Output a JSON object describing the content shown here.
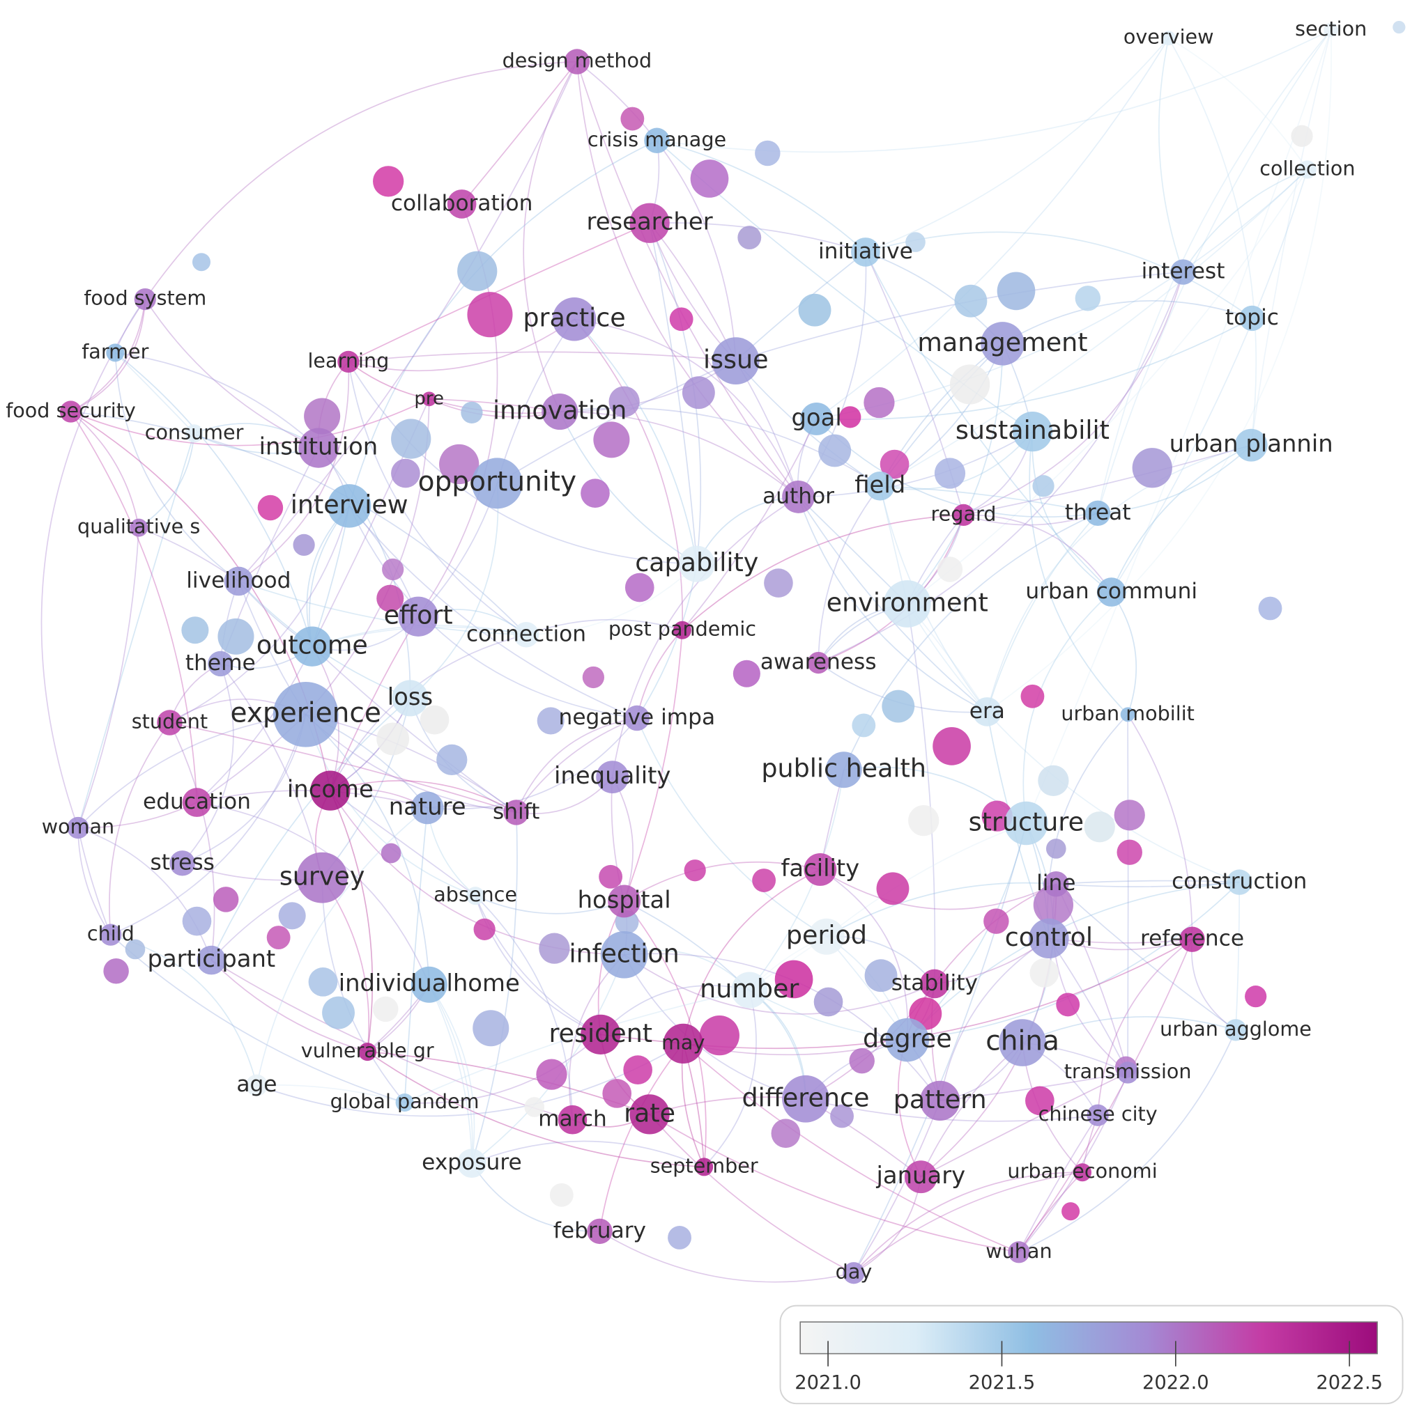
{
  "network": {
    "nodes": [
      {
        "label": "overview",
        "year": 2021.2
      },
      {
        "label": "section",
        "year": 2021.1
      },
      {
        "label": "design method",
        "year": 2022.1
      },
      {
        "label": "crisis manage",
        "year": 2021.6
      },
      {
        "label": "collaboration",
        "year": 2022.2
      },
      {
        "label": "researcher",
        "year": 2022.2
      },
      {
        "label": "initiative",
        "year": 2021.5
      },
      {
        "label": "collection",
        "year": 2021.2
      },
      {
        "label": "interest",
        "year": 2021.7
      },
      {
        "label": "topic",
        "year": 2021.5
      },
      {
        "label": "food system",
        "year": 2022.0
      },
      {
        "label": "farmer",
        "year": 2021.6
      },
      {
        "label": "practice",
        "year": 2021.9
      },
      {
        "label": "management",
        "year": 2021.8
      },
      {
        "label": "learning",
        "year": 2022.3
      },
      {
        "label": "issue",
        "year": 2021.8
      },
      {
        "label": "food security",
        "year": 2022.2
      },
      {
        "label": "pre",
        "year": 2022.3
      },
      {
        "label": "innovation",
        "year": 2022.0
      },
      {
        "label": "goal",
        "year": 2021.6
      },
      {
        "label": "sustainabilit",
        "year": 2021.5
      },
      {
        "label": "urban plannin",
        "year": 2021.5
      },
      {
        "label": "consumer",
        "year": 2021.2
      },
      {
        "label": "institution",
        "year": 2022.0
      },
      {
        "label": "opportunity",
        "year": 2021.7
      },
      {
        "label": "field",
        "year": 2021.5
      },
      {
        "label": "author",
        "year": 2022.0
      },
      {
        "label": "interview",
        "year": 2021.6
      },
      {
        "label": "regard",
        "year": 2022.3
      },
      {
        "label": "threat",
        "year": 2021.6
      },
      {
        "label": "qualitative s",
        "year": 2022.0
      },
      {
        "label": "capability",
        "year": 2021.2
      },
      {
        "label": "livelihood",
        "year": 2021.8
      },
      {
        "label": "environment",
        "year": 2021.3
      },
      {
        "label": "urban communi",
        "year": 2021.6
      },
      {
        "label": "effort",
        "year": 2021.9
      },
      {
        "label": "connection",
        "year": 2021.2
      },
      {
        "label": "post pandemic",
        "year": 2022.4
      },
      {
        "label": "outcome",
        "year": 2021.6
      },
      {
        "label": "theme",
        "year": 2021.8
      },
      {
        "label": "awareness",
        "year": 2022.1
      },
      {
        "label": "loss",
        "year": 2021.3
      },
      {
        "label": "experience",
        "year": 2021.7
      },
      {
        "label": "student",
        "year": 2022.2
      },
      {
        "label": "negative impa",
        "year": 2021.9
      },
      {
        "label": "era",
        "year": 2021.3
      },
      {
        "label": "urban mobilit",
        "year": 2021.6
      },
      {
        "label": "inequality",
        "year": 2021.9
      },
      {
        "label": "public health",
        "year": 2021.7
      },
      {
        "label": "income",
        "year": 2022.5
      },
      {
        "label": "education",
        "year": 2022.2
      },
      {
        "label": "nature",
        "year": 2021.7
      },
      {
        "label": "shift",
        "year": 2022.1
      },
      {
        "label": "woman",
        "year": 2021.9
      },
      {
        "label": "structure",
        "year": 2021.4
      },
      {
        "label": "stress",
        "year": 2021.9
      },
      {
        "label": "survey",
        "year": 2022.0
      },
      {
        "label": "facility",
        "year": 2022.2
      },
      {
        "label": "absence",
        "year": 2021.2
      },
      {
        "label": "hospital",
        "year": 2022.1
      },
      {
        "label": "line",
        "year": 2022.0
      },
      {
        "label": "construction",
        "year": 2021.4
      },
      {
        "label": "child",
        "year": 2021.9
      },
      {
        "label": "period",
        "year": 2021.1
      },
      {
        "label": "control",
        "year": 2021.8
      },
      {
        "label": "reference",
        "year": 2022.3
      },
      {
        "label": "participant",
        "year": 2021.8
      },
      {
        "label": "infection",
        "year": 2021.7
      },
      {
        "label": "individualhome",
        "year": 2021.6
      },
      {
        "label": "number",
        "year": 2021.2
      },
      {
        "label": "stability",
        "year": 2022.3
      },
      {
        "label": "china",
        "year": 2021.8
      },
      {
        "label": "resident",
        "year": 2022.4
      },
      {
        "label": "may",
        "year": 2022.4
      },
      {
        "label": "degree",
        "year": 2021.7
      },
      {
        "label": "urban agglome",
        "year": 2021.4
      },
      {
        "label": "vulnerable gr",
        "year": 2022.4
      },
      {
        "label": "age",
        "year": 2021.1
      },
      {
        "label": "transmission",
        "year": 2021.9
      },
      {
        "label": "global pandem",
        "year": 2021.5
      },
      {
        "label": "difference",
        "year": 2021.9
      },
      {
        "label": "pattern",
        "year": 2022.0
      },
      {
        "label": "chinese city",
        "year": 2021.9
      },
      {
        "label": "march",
        "year": 2022.3
      },
      {
        "label": "rate",
        "year": 2022.4
      },
      {
        "label": "september",
        "year": 2022.4
      },
      {
        "label": "exposure",
        "year": 2021.2
      },
      {
        "label": "urban economi",
        "year": 2022.3
      },
      {
        "label": "january",
        "year": 2022.2
      },
      {
        "label": "february",
        "year": 2022.1
      },
      {
        "label": "wuhan",
        "year": 2022.0
      },
      {
        "label": "day",
        "year": 2021.9
      }
    ],
    "legend": {
      "range": [
        2020.92,
        2022.58
      ],
      "ticks": [
        {
          "value": 2021,
          "label": "2021.0"
        },
        {
          "value": 2021.5,
          "label": "2021.5"
        },
        {
          "value": 2022,
          "label": "2022.0"
        },
        {
          "value": 2022.5,
          "label": "2022.5"
        }
      ],
      "colorscale": [
        "#f4f4f4",
        "#dcedf7",
        "#8fbee3",
        "#a48ad4",
        "#c43ca5",
        "#9c0c7c"
      ]
    }
  }
}
